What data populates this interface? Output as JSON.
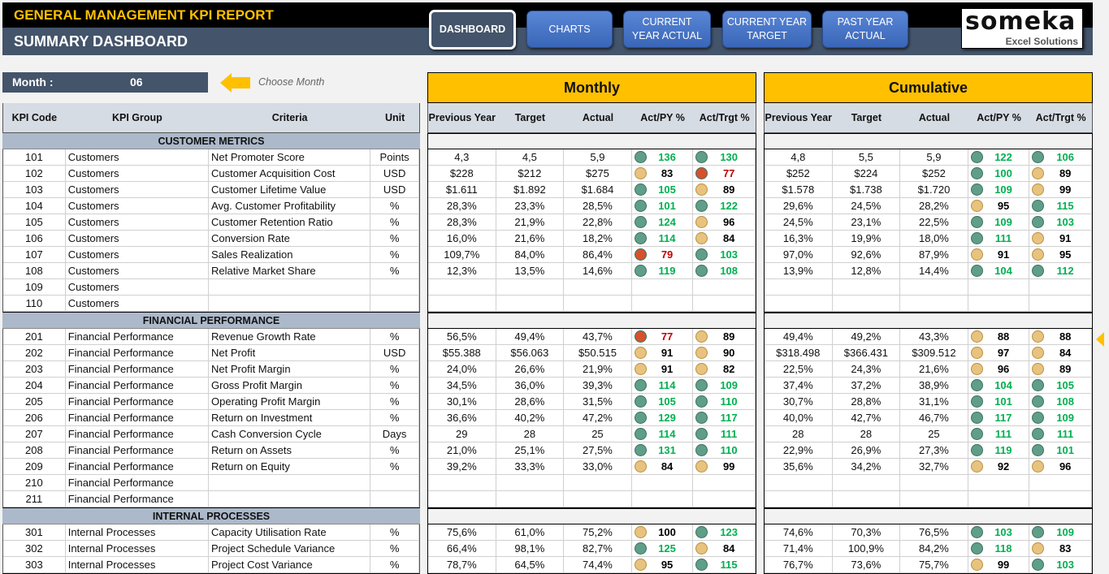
{
  "header": {
    "title": "GENERAL MANAGEMENT KPI REPORT",
    "subtitle": "SUMMARY DASHBOARD"
  },
  "nav": [
    {
      "label": "DASHBOARD",
      "active": true
    },
    {
      "label": "CHARTS"
    },
    {
      "label": "CURRENT YEAR ACTUAL"
    },
    {
      "label": "CURRENT YEAR TARGET"
    },
    {
      "label": "PAST YEAR ACTUAL"
    }
  ],
  "logo": {
    "name": "someka",
    "tagline": "Excel Solutions"
  },
  "month": {
    "label": "Month :",
    "value": "06",
    "hint": "Choose Month"
  },
  "bands": {
    "monthly": "Monthly",
    "cumulative": "Cumulative"
  },
  "columns": {
    "left": [
      "KPI Code",
      "KPI Group",
      "Criteria",
      "Unit"
    ],
    "right": [
      "Previous Year",
      "Target",
      "Actual",
      "Act/PY %",
      "Act/Trgt %"
    ]
  },
  "colors": {
    "good": "#5f9e88",
    "warn": "#e8c27f",
    "bad": "#d5522e",
    "good_text": "#00b050",
    "bad_text": "#c00000",
    "band": "#ffc000",
    "slate": "#44546a"
  },
  "sections": [
    {
      "title": "CUSTOMER METRICS",
      "rows": [
        {
          "code": "101",
          "group": "Customers",
          "criteria": "Net Promoter Score",
          "unit": "Points",
          "m": [
            "4,3",
            "4,5",
            "5,9",
            [
              136,
              "g"
            ],
            [
              130,
              "g"
            ]
          ],
          "c": [
            "4,8",
            "5,5",
            "5,9",
            [
              122,
              "g"
            ],
            [
              106,
              "g"
            ]
          ]
        },
        {
          "code": "102",
          "group": "Customers",
          "criteria": "Customer Acquisition Cost",
          "unit": "USD",
          "m": [
            "$228",
            "$212",
            "$275",
            [
              83,
              "y"
            ],
            [
              77,
              "r"
            ]
          ],
          "c": [
            "$252",
            "$224",
            "$252",
            [
              100,
              "g"
            ],
            [
              89,
              "y"
            ]
          ]
        },
        {
          "code": "103",
          "group": "Customers",
          "criteria": "Customer Lifetime Value",
          "unit": "USD",
          "m": [
            "$1.611",
            "$1.892",
            "$1.684",
            [
              105,
              "g"
            ],
            [
              89,
              "y"
            ]
          ],
          "c": [
            "$1.578",
            "$1.738",
            "$1.720",
            [
              109,
              "g"
            ],
            [
              99,
              "y"
            ]
          ]
        },
        {
          "code": "104",
          "group": "Customers",
          "criteria": "Avg. Customer Profitability",
          "unit": "%",
          "m": [
            "28,3%",
            "23,3%",
            "28,5%",
            [
              101,
              "g"
            ],
            [
              122,
              "g"
            ]
          ],
          "c": [
            "29,6%",
            "24,5%",
            "28,2%",
            [
              95,
              "y"
            ],
            [
              115,
              "g"
            ]
          ]
        },
        {
          "code": "105",
          "group": "Customers",
          "criteria": "Customer Retention Ratio",
          "unit": "%",
          "m": [
            "28,3%",
            "21,9%",
            "22,8%",
            [
              124,
              "g"
            ],
            [
              96,
              "y"
            ]
          ],
          "c": [
            "24,5%",
            "23,1%",
            "22,5%",
            [
              109,
              "g"
            ],
            [
              103,
              "g"
            ]
          ]
        },
        {
          "code": "106",
          "group": "Customers",
          "criteria": "Conversion Rate",
          "unit": "%",
          "m": [
            "16,0%",
            "21,6%",
            "18,2%",
            [
              114,
              "g"
            ],
            [
              84,
              "y"
            ]
          ],
          "c": [
            "16,3%",
            "19,9%",
            "18,0%",
            [
              111,
              "g"
            ],
            [
              91,
              "y"
            ]
          ]
        },
        {
          "code": "107",
          "group": "Customers",
          "criteria": "Sales Realization",
          "unit": "%",
          "m": [
            "109,7%",
            "84,0%",
            "86,4%",
            [
              79,
              "r"
            ],
            [
              103,
              "g"
            ]
          ],
          "c": [
            "97,0%",
            "92,6%",
            "87,9%",
            [
              91,
              "y"
            ],
            [
              95,
              "y"
            ]
          ]
        },
        {
          "code": "108",
          "group": "Customers",
          "criteria": "Relative Market Share",
          "unit": "%",
          "m": [
            "12,3%",
            "13,5%",
            "14,6%",
            [
              119,
              "g"
            ],
            [
              108,
              "g"
            ]
          ],
          "c": [
            "13,9%",
            "12,8%",
            "14,4%",
            [
              104,
              "g"
            ],
            [
              112,
              "g"
            ]
          ]
        },
        {
          "code": "109",
          "group": "Customers",
          "criteria": "",
          "unit": ""
        },
        {
          "code": "110",
          "group": "Customers",
          "criteria": "",
          "unit": ""
        }
      ]
    },
    {
      "title": "FINANCIAL PERFORMANCE",
      "rows": [
        {
          "code": "201",
          "group": "Financial Performance",
          "criteria": "Revenue Growth Rate",
          "unit": "%",
          "m": [
            "56,5%",
            "49,4%",
            "43,7%",
            [
              77,
              "r"
            ],
            [
              89,
              "y"
            ]
          ],
          "c": [
            "49,4%",
            "49,2%",
            "43,3%",
            [
              88,
              "y"
            ],
            [
              88,
              "y"
            ]
          ]
        },
        {
          "code": "202",
          "group": "Financial Performance",
          "criteria": "Net Profit",
          "unit": "USD",
          "m": [
            "$55.388",
            "$56.063",
            "$50.515",
            [
              91,
              "y"
            ],
            [
              90,
              "y"
            ]
          ],
          "c": [
            "$318.498",
            "$366.431",
            "$309.512",
            [
              97,
              "y"
            ],
            [
              84,
              "y"
            ]
          ]
        },
        {
          "code": "203",
          "group": "Financial Performance",
          "criteria": "Net Profit Margin",
          "unit": "%",
          "m": [
            "24,0%",
            "26,6%",
            "21,9%",
            [
              91,
              "y"
            ],
            [
              82,
              "y"
            ]
          ],
          "c": [
            "22,5%",
            "24,3%",
            "21,6%",
            [
              96,
              "y"
            ],
            [
              89,
              "y"
            ]
          ]
        },
        {
          "code": "204",
          "group": "Financial Performance",
          "criteria": "Gross Profit Margin",
          "unit": "%",
          "m": [
            "34,5%",
            "36,0%",
            "39,3%",
            [
              114,
              "g"
            ],
            [
              109,
              "g"
            ]
          ],
          "c": [
            "37,4%",
            "37,2%",
            "38,9%",
            [
              104,
              "g"
            ],
            [
              105,
              "g"
            ]
          ]
        },
        {
          "code": "205",
          "group": "Financial Performance",
          "criteria": "Operating Profit Margin",
          "unit": "%",
          "m": [
            "30,1%",
            "28,6%",
            "31,5%",
            [
              105,
              "g"
            ],
            [
              110,
              "g"
            ]
          ],
          "c": [
            "30,7%",
            "28,8%",
            "31,1%",
            [
              101,
              "g"
            ],
            [
              108,
              "g"
            ]
          ]
        },
        {
          "code": "206",
          "group": "Financial Performance",
          "criteria": "Return on Investment",
          "unit": "%",
          "m": [
            "36,6%",
            "40,2%",
            "47,2%",
            [
              129,
              "g"
            ],
            [
              117,
              "g"
            ]
          ],
          "c": [
            "40,0%",
            "42,7%",
            "46,7%",
            [
              117,
              "g"
            ],
            [
              109,
              "g"
            ]
          ]
        },
        {
          "code": "207",
          "group": "Financial Performance",
          "criteria": "Cash Conversion Cycle",
          "unit": "Days",
          "m": [
            "29",
            "28",
            "25",
            [
              114,
              "g"
            ],
            [
              111,
              "g"
            ]
          ],
          "c": [
            "28",
            "28",
            "25",
            [
              111,
              "g"
            ],
            [
              111,
              "g"
            ]
          ]
        },
        {
          "code": "208",
          "group": "Financial Performance",
          "criteria": "Return on Assets",
          "unit": "%",
          "m": [
            "21,0%",
            "25,1%",
            "27,5%",
            [
              131,
              "g"
            ],
            [
              110,
              "g"
            ]
          ],
          "c": [
            "22,9%",
            "26,9%",
            "27,3%",
            [
              119,
              "g"
            ],
            [
              101,
              "g"
            ]
          ]
        },
        {
          "code": "209",
          "group": "Financial Performance",
          "criteria": "Return on Equity",
          "unit": "%",
          "m": [
            "39,2%",
            "33,3%",
            "33,0%",
            [
              84,
              "y"
            ],
            [
              99,
              "y"
            ]
          ],
          "c": [
            "35,6%",
            "34,2%",
            "32,7%",
            [
              92,
              "y"
            ],
            [
              96,
              "y"
            ]
          ]
        },
        {
          "code": "210",
          "group": "Financial Performance",
          "criteria": "",
          "unit": ""
        },
        {
          "code": "211",
          "group": "Financial Performance",
          "criteria": "",
          "unit": ""
        }
      ]
    },
    {
      "title": "INTERNAL PROCESSES",
      "rows": [
        {
          "code": "301",
          "group": "Internal Processes",
          "criteria": "Capacity Utilisation Rate",
          "unit": "%",
          "m": [
            "75,6%",
            "61,0%",
            "75,2%",
            [
              100,
              "y"
            ],
            [
              123,
              "g"
            ]
          ],
          "c": [
            "74,6%",
            "70,3%",
            "76,5%",
            [
              103,
              "g"
            ],
            [
              109,
              "g"
            ]
          ]
        },
        {
          "code": "302",
          "group": "Internal Processes",
          "criteria": "Project Schedule Variance",
          "unit": "%",
          "m": [
            "66,4%",
            "98,1%",
            "82,7%",
            [
              125,
              "g"
            ],
            [
              84,
              "y"
            ]
          ],
          "c": [
            "71,4%",
            "100,9%",
            "84,2%",
            [
              118,
              "g"
            ],
            [
              83,
              "y"
            ]
          ]
        },
        {
          "code": "303",
          "group": "Internal Processes",
          "criteria": "Project Cost Variance",
          "unit": "%",
          "m": [
            "78,7%",
            "64,5%",
            "74,4%",
            [
              95,
              "y"
            ],
            [
              115,
              "g"
            ]
          ],
          "c": [
            "76,7%",
            "73,6%",
            "75,7%",
            [
              99,
              "y"
            ],
            [
              103,
              "g"
            ]
          ]
        }
      ]
    }
  ]
}
